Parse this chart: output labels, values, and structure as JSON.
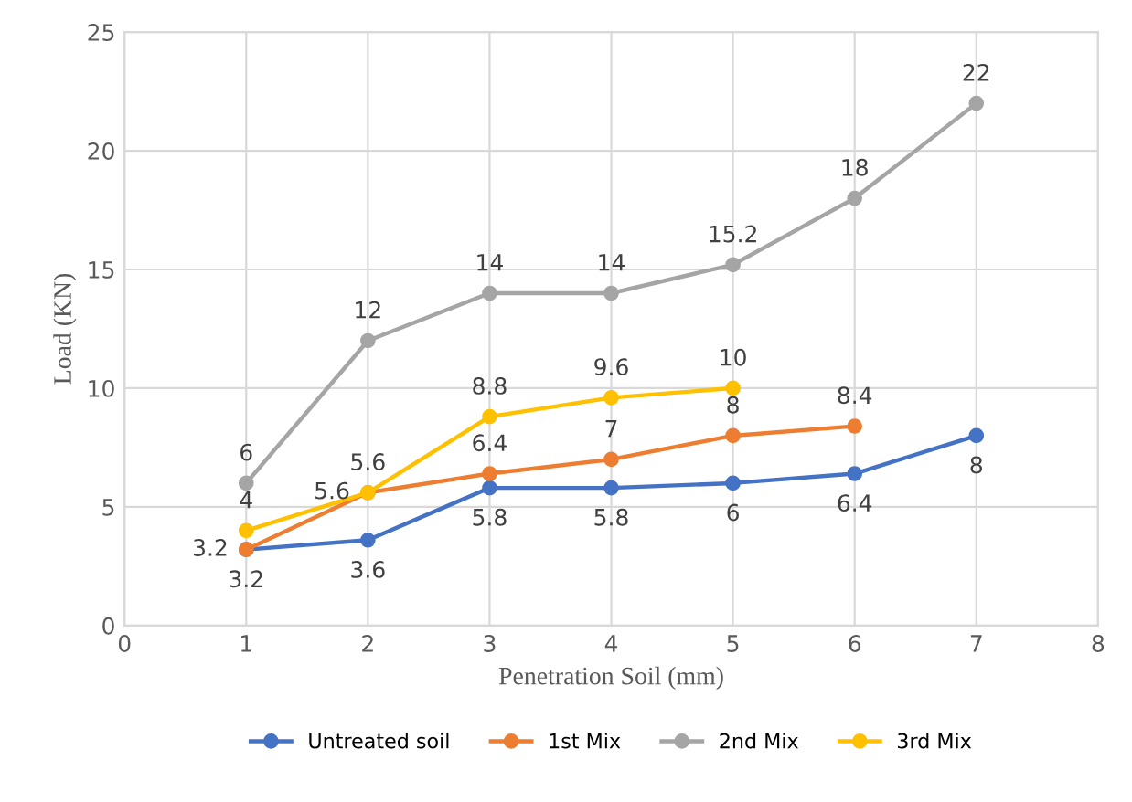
{
  "chart_data": {
    "type": "line",
    "xlabel": "Penetration Soil (mm)",
    "ylabel": "Load (KN)",
    "xlim": [
      0,
      8
    ],
    "xticks": [
      0,
      1,
      2,
      3,
      4,
      5,
      6,
      7,
      8
    ],
    "ylim": [
      0,
      25
    ],
    "yticks": [
      0,
      5,
      10,
      15,
      20,
      25
    ],
    "grid": true,
    "legend": "bottom",
    "marker": "circle",
    "line_style": "solid",
    "series": [
      {
        "name": "Untreated soil",
        "color": "#4472c4",
        "x": [
          1,
          2,
          3,
          4,
          5,
          6,
          7
        ],
        "values": [
          3.2,
          3.6,
          5.8,
          5.8,
          6,
          6.4,
          8
        ],
        "value_labels": [
          "3.2",
          "3.6",
          "5.8",
          "5.8",
          "6",
          "6.4",
          "8"
        ]
      },
      {
        "name": "1st Mix",
        "color": "#ed7d31",
        "x": [
          1,
          2,
          3,
          4,
          5,
          6
        ],
        "values": [
          3.2,
          5.6,
          6.4,
          7,
          8,
          8.4
        ],
        "value_labels": [
          "3.2",
          "5.6",
          "6.4",
          "7",
          "8",
          "8.4"
        ]
      },
      {
        "name": "2nd Mix",
        "color": "#a5a5a5",
        "x": [
          1,
          2,
          3,
          4,
          5,
          6,
          7
        ],
        "values": [
          6,
          12,
          14,
          14,
          15.2,
          18,
          22
        ],
        "value_labels": [
          "6",
          "12",
          "14",
          "14",
          "15.2",
          "18",
          "22"
        ]
      },
      {
        "name": "3rd Mix",
        "color": "#ffc000",
        "x": [
          1,
          2,
          3,
          4,
          5
        ],
        "values": [
          4,
          5.6,
          8.8,
          9.6,
          10
        ],
        "value_labels": [
          "4",
          "5.6",
          "8.8",
          "9.6",
          "10"
        ]
      }
    ]
  }
}
